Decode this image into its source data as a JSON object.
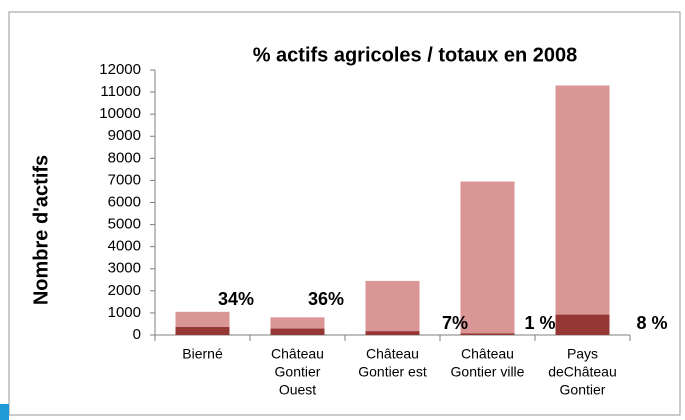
{
  "chart_data": {
    "type": "bar",
    "title": "% actifs agricoles / totaux en 2008",
    "y_label": "Nombre d'actifs",
    "categories": [
      [
        "Bierné"
      ],
      [
        "Château",
        "Gontier",
        "Ouest"
      ],
      [
        "Château",
        "Gontier est"
      ],
      [
        "Château",
        "Gontier ville"
      ],
      [
        "Pays",
        "deChâteau",
        "Gontier"
      ]
    ],
    "series": [
      {
        "color": "#d99694",
        "values": [
          1050,
          800,
          2450,
          6950,
          11300
        ]
      },
      {
        "color": "#953735",
        "values": [
          360,
          290,
          170,
          70,
          920
        ]
      }
    ],
    "annotations": [
      "34%",
      "36%",
      "7%",
      "1 %",
      "8 %"
    ],
    "ylim": [
      0,
      12000
    ],
    "yticks": [
      0,
      1000,
      2000,
      3000,
      4000,
      5000,
      6000,
      7000,
      8000,
      9000,
      10000,
      11000,
      12000
    ],
    "grid": false
  }
}
